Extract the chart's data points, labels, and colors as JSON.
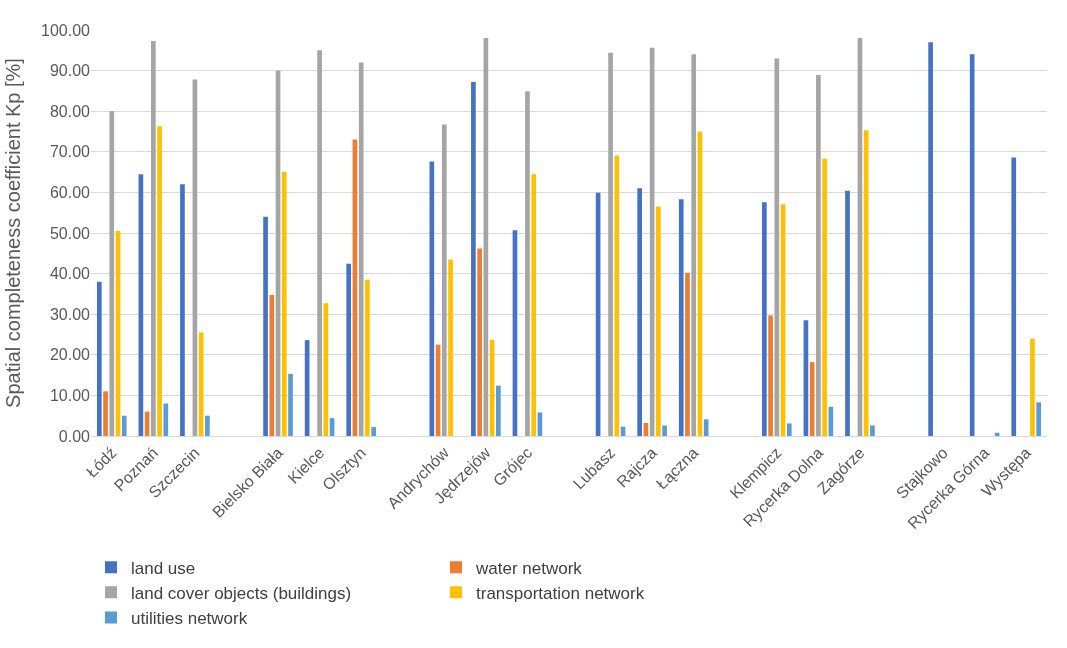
{
  "chart_data": {
    "type": "bar",
    "ylabel": "Spatial completeness coefficient Kp [%]",
    "categories": [
      "Łódź",
      "Poznań",
      "Szczecin",
      null,
      "Bielsko Biała",
      "Kielce",
      "Olsztyn",
      null,
      "Andrychów",
      "Jędrzejów",
      "Grójec",
      null,
      "Lubasz",
      "Rajcza",
      "Łączna",
      null,
      "Klempicz",
      "Rycerka Dolna",
      "Zagórze",
      null,
      "Stajkowo",
      "Rycerka Górna",
      "Występa"
    ],
    "series": [
      {
        "name": "land use",
        "color": "#4472c4",
        "values": [
          38,
          64.5,
          62,
          null,
          54,
          23.6,
          42.4,
          null,
          67.6,
          87.2,
          50.7,
          null,
          59.9,
          61,
          58.3,
          null,
          57.6,
          28.5,
          60.4,
          null,
          97,
          94,
          68.6
        ]
      },
      {
        "name": "water network",
        "color": "#ed7d31",
        "values": [
          11,
          6,
          0,
          null,
          34.7,
          0,
          73,
          null,
          22.5,
          46.2,
          0,
          null,
          0,
          3.2,
          40.2,
          null,
          29.7,
          18.2,
          0,
          null,
          0,
          0,
          0
        ]
      },
      {
        "name": "land cover objects (buildings)",
        "color": "#a5a5a5",
        "values": [
          80,
          97.3,
          87.8,
          null,
          90,
          95,
          92,
          null,
          76.7,
          98,
          84.9,
          null,
          94.4,
          95.6,
          94,
          null,
          93,
          88.9,
          98,
          null,
          0,
          0,
          0
        ]
      },
      {
        "name": "transportation network",
        "color": "#ffc000",
        "values": [
          50.5,
          76.3,
          25.5,
          null,
          65,
          32.7,
          38.5,
          null,
          43.5,
          23.7,
          64.5,
          null,
          69.1,
          56.5,
          75,
          null,
          57.1,
          68.3,
          75.3,
          null,
          0,
          0,
          24
        ]
      },
      {
        "name": "utilities network",
        "color": "#5b9bd5",
        "values": [
          5,
          8,
          5,
          null,
          15.3,
          4.4,
          2.2,
          null,
          0,
          12.4,
          5.8,
          null,
          2.3,
          2.6,
          4.1,
          null,
          3.1,
          7.2,
          2.6,
          null,
          0,
          0.8,
          8.3
        ]
      }
    ],
    "ylim": [
      0,
      100
    ],
    "yticks": [
      {
        "value": 0,
        "label": "0.00"
      },
      {
        "value": 10,
        "label": "10.00"
      },
      {
        "value": 20,
        "label": "20.00"
      },
      {
        "value": 30,
        "label": "30.00"
      },
      {
        "value": 40,
        "label": "40.00"
      },
      {
        "value": 50,
        "label": "50.00"
      },
      {
        "value": 60,
        "label": "60.00"
      },
      {
        "value": 70,
        "label": "70.00"
      },
      {
        "value": 80,
        "label": "80.00"
      },
      {
        "value": 90,
        "label": "90.00"
      },
      {
        "value": 100,
        "label": "100.00"
      }
    ],
    "grid": "y",
    "legend": "bottom"
  }
}
